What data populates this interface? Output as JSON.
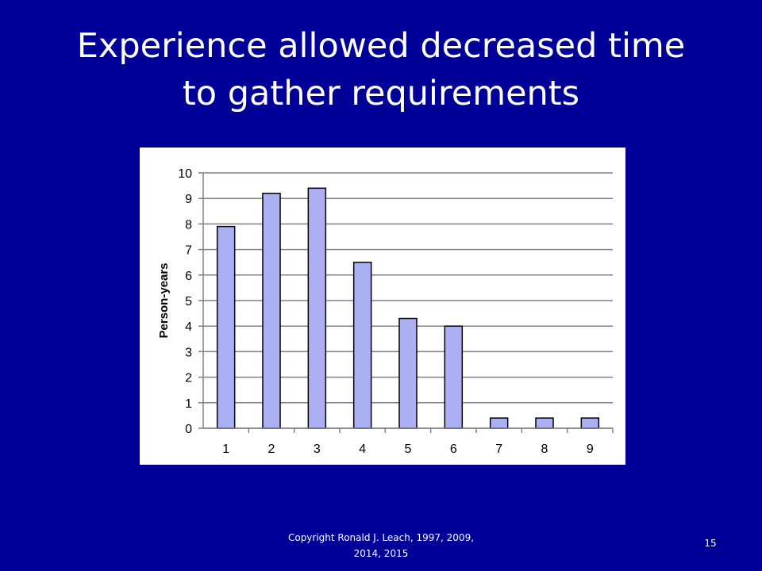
{
  "slide": {
    "title_line1": "Experience allowed decreased time",
    "title_line2": "to gather requirements",
    "footer_line1": "Copyright Ronald J. Leach, 1997, 2009,",
    "footer_line2": "2014, 2015",
    "slide_number": "15"
  },
  "chart_data": {
    "type": "bar",
    "categories": [
      "1",
      "2",
      "3",
      "4",
      "5",
      "6",
      "7",
      "8",
      "9"
    ],
    "values": [
      7.9,
      9.2,
      9.4,
      6.5,
      4.3,
      4.0,
      0.4,
      0.4,
      0.4
    ],
    "xlabel": "",
    "ylabel": "Person-years",
    "ylim": [
      0,
      10
    ],
    "yticks": [
      0,
      1,
      2,
      3,
      4,
      5,
      6,
      7,
      8,
      9,
      10
    ],
    "grid": true,
    "legend": "none",
    "colors": {
      "bar_fill": "#aab0f2",
      "bar_stroke": "#000000",
      "grid": "#808080"
    }
  }
}
